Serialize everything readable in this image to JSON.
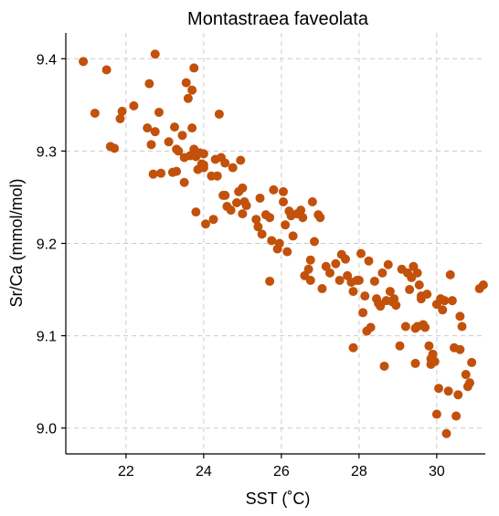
{
  "chart_data": {
    "type": "scatter",
    "title": "Montastraea faveolata",
    "xlabel": "SST ( $^\\circ$C)",
    "xlabel_display": "SST (˚C)",
    "ylabel": "Sr/Ca (mmol/mol)",
    "xlim": [
      20.45,
      31.25
    ],
    "ylim": [
      8.972,
      9.428
    ],
    "xticks": [
      22,
      24,
      26,
      28,
      30
    ],
    "yticks": [
      9.0,
      9.1,
      9.2,
      9.3,
      9.4
    ],
    "xtick_labels": [
      "22",
      "24",
      "26",
      "28",
      "30"
    ],
    "ytick_labels": [
      "9.0",
      "9.1",
      "9.2",
      "9.3",
      "9.4"
    ],
    "grid": true,
    "marker_color": "#c2510b",
    "points": [
      [
        20.9,
        9.397
      ],
      [
        21.2,
        9.341
      ],
      [
        21.5,
        9.388
      ],
      [
        21.6,
        9.305
      ],
      [
        21.7,
        9.303
      ],
      [
        21.85,
        9.335
      ],
      [
        21.9,
        9.343
      ],
      [
        22.2,
        9.349
      ],
      [
        22.55,
        9.325
      ],
      [
        22.6,
        9.373
      ],
      [
        22.65,
        9.307
      ],
      [
        22.7,
        9.275
      ],
      [
        22.75,
        9.405
      ],
      [
        22.75,
        9.321
      ],
      [
        22.85,
        9.342
      ],
      [
        22.9,
        9.276
      ],
      [
        23.1,
        9.31
      ],
      [
        23.2,
        9.277
      ],
      [
        23.25,
        9.326
      ],
      [
        23.3,
        9.278
      ],
      [
        23.3,
        9.302
      ],
      [
        23.35,
        9.3
      ],
      [
        23.45,
        9.317
      ],
      [
        23.5,
        9.266
      ],
      [
        23.5,
        9.293
      ],
      [
        23.55,
        9.374
      ],
      [
        23.6,
        9.357
      ],
      [
        23.65,
        9.295
      ],
      [
        23.7,
        9.325
      ],
      [
        23.7,
        9.366
      ],
      [
        23.75,
        9.39
      ],
      [
        23.75,
        9.302
      ],
      [
        23.8,
        9.294
      ],
      [
        23.8,
        9.234
      ],
      [
        23.85,
        9.28
      ],
      [
        23.9,
        9.298
      ],
      [
        23.95,
        9.286
      ],
      [
        24.0,
        9.297
      ],
      [
        24.0,
        9.285
      ],
      [
        24.0,
        9.282
      ],
      [
        24.05,
        9.221
      ],
      [
        24.2,
        9.273
      ],
      [
        24.25,
        9.226
      ],
      [
        24.3,
        9.291
      ],
      [
        24.35,
        9.273
      ],
      [
        24.4,
        9.34
      ],
      [
        24.45,
        9.293
      ],
      [
        24.5,
        9.252
      ],
      [
        24.55,
        9.287
      ],
      [
        24.55,
        9.252
      ],
      [
        24.6,
        9.24
      ],
      [
        24.7,
        9.236
      ],
      [
        24.75,
        9.282
      ],
      [
        24.85,
        9.244
      ],
      [
        24.9,
        9.256
      ],
      [
        24.95,
        9.29
      ],
      [
        25.0,
        9.26
      ],
      [
        25.0,
        9.232
      ],
      [
        25.05,
        9.245
      ],
      [
        25.1,
        9.241
      ],
      [
        25.35,
        9.226
      ],
      [
        25.4,
        9.218
      ],
      [
        25.45,
        9.249
      ],
      [
        25.5,
        9.21
      ],
      [
        25.6,
        9.231
      ],
      [
        25.7,
        9.228
      ],
      [
        25.7,
        9.159
      ],
      [
        25.75,
        9.203
      ],
      [
        25.8,
        9.258
      ],
      [
        25.9,
        9.194
      ],
      [
        25.95,
        9.2
      ],
      [
        26.05,
        9.256
      ],
      [
        26.05,
        9.245
      ],
      [
        26.1,
        9.22
      ],
      [
        26.15,
        9.191
      ],
      [
        26.2,
        9.235
      ],
      [
        26.25,
        9.23
      ],
      [
        26.3,
        9.208
      ],
      [
        26.4,
        9.232
      ],
      [
        26.5,
        9.236
      ],
      [
        26.55,
        9.228
      ],
      [
        26.6,
        9.165
      ],
      [
        26.7,
        9.172
      ],
      [
        26.75,
        9.182
      ],
      [
        26.75,
        9.16
      ],
      [
        26.8,
        9.245
      ],
      [
        26.85,
        9.202
      ],
      [
        26.95,
        9.231
      ],
      [
        27.0,
        9.228
      ],
      [
        27.05,
        9.151
      ],
      [
        27.15,
        9.175
      ],
      [
        27.25,
        9.168
      ],
      [
        27.4,
        9.178
      ],
      [
        27.5,
        9.16
      ],
      [
        27.55,
        9.188
      ],
      [
        27.65,
        9.183
      ],
      [
        27.7,
        9.165
      ],
      [
        27.8,
        9.158
      ],
      [
        27.85,
        9.148
      ],
      [
        27.85,
        9.087
      ],
      [
        27.95,
        9.16
      ],
      [
        28.0,
        9.16
      ],
      [
        28.05,
        9.189
      ],
      [
        28.1,
        9.125
      ],
      [
        28.15,
        9.143
      ],
      [
        28.2,
        9.105
      ],
      [
        28.25,
        9.181
      ],
      [
        28.3,
        9.109
      ],
      [
        28.4,
        9.159
      ],
      [
        28.45,
        9.14
      ],
      [
        28.5,
        9.135
      ],
      [
        28.55,
        9.132
      ],
      [
        28.6,
        9.168
      ],
      [
        28.65,
        9.067
      ],
      [
        28.7,
        9.138
      ],
      [
        28.75,
        9.177
      ],
      [
        28.8,
        9.148
      ],
      [
        28.85,
        9.137
      ],
      [
        28.9,
        9.14
      ],
      [
        28.95,
        9.133
      ],
      [
        29.05,
        9.089
      ],
      [
        29.1,
        9.172
      ],
      [
        29.2,
        9.11
      ],
      [
        29.25,
        9.168
      ],
      [
        29.3,
        9.15
      ],
      [
        29.35,
        9.163
      ],
      [
        29.4,
        9.175
      ],
      [
        29.45,
        9.07
      ],
      [
        29.45,
        9.108
      ],
      [
        29.5,
        9.168
      ],
      [
        29.5,
        9.11
      ],
      [
        29.55,
        9.155
      ],
      [
        29.6,
        9.14
      ],
      [
        29.6,
        9.143
      ],
      [
        29.65,
        9.112
      ],
      [
        29.7,
        9.109
      ],
      [
        29.75,
        9.145
      ],
      [
        29.8,
        9.089
      ],
      [
        29.85,
        9.075
      ],
      [
        29.85,
        9.069
      ],
      [
        29.9,
        9.08
      ],
      [
        29.95,
        9.072
      ],
      [
        30.0,
        9.134
      ],
      [
        30.0,
        9.015
      ],
      [
        30.05,
        9.043
      ],
      [
        30.1,
        9.14
      ],
      [
        30.15,
        9.128
      ],
      [
        30.2,
        9.138
      ],
      [
        30.25,
        8.994
      ],
      [
        30.3,
        9.04
      ],
      [
        30.35,
        9.166
      ],
      [
        30.4,
        9.138
      ],
      [
        30.45,
        9.087
      ],
      [
        30.5,
        9.013
      ],
      [
        30.55,
        9.036
      ],
      [
        30.6,
        9.121
      ],
      [
        30.65,
        9.11
      ],
      [
        30.6,
        9.085
      ],
      [
        30.75,
        9.058
      ],
      [
        30.8,
        9.045
      ],
      [
        30.85,
        9.049
      ],
      [
        30.9,
        9.071
      ],
      [
        31.1,
        9.151
      ],
      [
        31.2,
        9.155
      ]
    ]
  }
}
